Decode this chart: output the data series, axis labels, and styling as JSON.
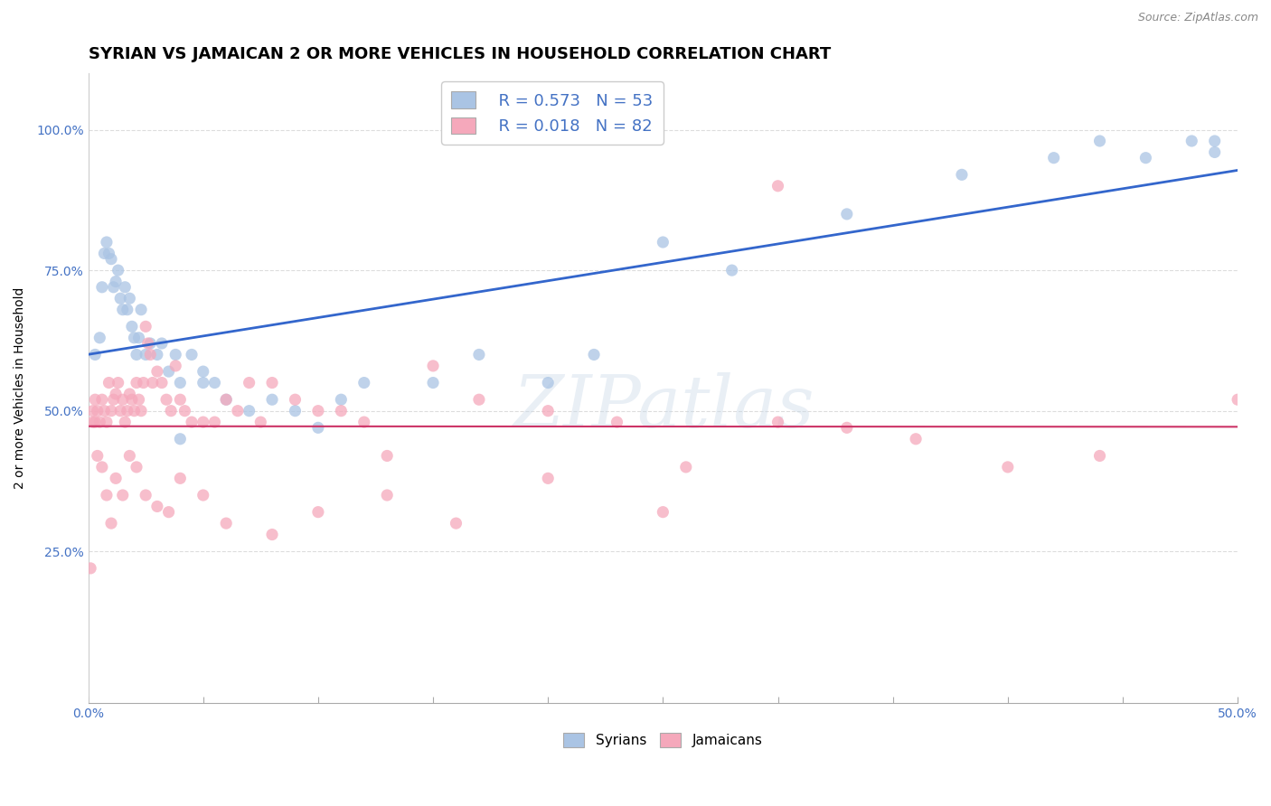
{
  "title": "SYRIAN VS JAMAICAN 2 OR MORE VEHICLES IN HOUSEHOLD CORRELATION CHART",
  "source": "Source: ZipAtlas.com",
  "ylabel": "2 or more Vehicles in Household",
  "xlim": [
    0.0,
    0.5
  ],
  "ylim": [
    -0.02,
    1.1
  ],
  "xtick_positions": [
    0.0,
    0.05,
    0.1,
    0.15,
    0.2,
    0.25,
    0.3,
    0.35,
    0.4,
    0.45,
    0.5
  ],
  "xticklabels": [
    "0.0%",
    "",
    "",
    "",
    "",
    "",
    "",
    "",
    "",
    "",
    "50.0%"
  ],
  "ytick_positions": [
    0.25,
    0.5,
    0.75,
    1.0
  ],
  "yticklabels": [
    "25.0%",
    "50.0%",
    "75.0%",
    "100.0%"
  ],
  "syrian_color": "#aac4e4",
  "jamaican_color": "#f5a8bb",
  "syrian_line_color": "#3366cc",
  "jamaican_line_color": "#cc3366",
  "legend_R_syrian": "R = 0.573",
  "legend_N_syrian": "N = 53",
  "legend_R_jamaican": "R = 0.018",
  "legend_N_jamaican": "N = 82",
  "watermark": "ZIPatlas",
  "syrian_x": [
    0.003,
    0.005,
    0.006,
    0.007,
    0.008,
    0.009,
    0.01,
    0.011,
    0.012,
    0.013,
    0.014,
    0.015,
    0.016,
    0.017,
    0.018,
    0.019,
    0.02,
    0.021,
    0.022,
    0.023,
    0.025,
    0.027,
    0.03,
    0.032,
    0.035,
    0.038,
    0.04,
    0.05,
    0.055,
    0.06,
    0.07,
    0.08,
    0.09,
    0.1,
    0.11,
    0.12,
    0.15,
    0.17,
    0.2,
    0.22,
    0.25,
    0.28,
    0.33,
    0.38,
    0.42,
    0.44,
    0.46,
    0.48,
    0.49,
    0.49,
    0.04,
    0.045,
    0.05
  ],
  "syrian_y": [
    0.6,
    0.63,
    0.72,
    0.78,
    0.8,
    0.78,
    0.77,
    0.72,
    0.73,
    0.75,
    0.7,
    0.68,
    0.72,
    0.68,
    0.7,
    0.65,
    0.63,
    0.6,
    0.63,
    0.68,
    0.6,
    0.62,
    0.6,
    0.62,
    0.57,
    0.6,
    0.55,
    0.57,
    0.55,
    0.52,
    0.5,
    0.52,
    0.5,
    0.47,
    0.52,
    0.55,
    0.55,
    0.6,
    0.55,
    0.6,
    0.8,
    0.75,
    0.85,
    0.92,
    0.95,
    0.98,
    0.95,
    0.98,
    0.96,
    0.98,
    0.45,
    0.6,
    0.55
  ],
  "jamaican_x": [
    0.001,
    0.002,
    0.003,
    0.004,
    0.005,
    0.006,
    0.007,
    0.008,
    0.009,
    0.01,
    0.011,
    0.012,
    0.013,
    0.014,
    0.015,
    0.016,
    0.017,
    0.018,
    0.019,
    0.02,
    0.021,
    0.022,
    0.023,
    0.024,
    0.025,
    0.026,
    0.027,
    0.028,
    0.03,
    0.032,
    0.034,
    0.036,
    0.038,
    0.04,
    0.042,
    0.045,
    0.05,
    0.055,
    0.06,
    0.065,
    0.07,
    0.075,
    0.08,
    0.09,
    0.1,
    0.11,
    0.12,
    0.13,
    0.15,
    0.17,
    0.2,
    0.23,
    0.26,
    0.3,
    0.33,
    0.36,
    0.4,
    0.44,
    0.5,
    0.002,
    0.003,
    0.004,
    0.006,
    0.008,
    0.01,
    0.012,
    0.015,
    0.018,
    0.021,
    0.025,
    0.03,
    0.035,
    0.04,
    0.05,
    0.06,
    0.08,
    0.1,
    0.13,
    0.16,
    0.2,
    0.25,
    0.3
  ],
  "jamaican_y": [
    0.22,
    0.48,
    0.52,
    0.5,
    0.48,
    0.52,
    0.5,
    0.48,
    0.55,
    0.5,
    0.52,
    0.53,
    0.55,
    0.5,
    0.52,
    0.48,
    0.5,
    0.53,
    0.52,
    0.5,
    0.55,
    0.52,
    0.5,
    0.55,
    0.65,
    0.62,
    0.6,
    0.55,
    0.57,
    0.55,
    0.52,
    0.5,
    0.58,
    0.52,
    0.5,
    0.48,
    0.48,
    0.48,
    0.52,
    0.5,
    0.55,
    0.48,
    0.55,
    0.52,
    0.5,
    0.5,
    0.48,
    0.42,
    0.58,
    0.52,
    0.5,
    0.48,
    0.4,
    0.48,
    0.47,
    0.45,
    0.4,
    0.42,
    0.52,
    0.5,
    0.48,
    0.42,
    0.4,
    0.35,
    0.3,
    0.38,
    0.35,
    0.42,
    0.4,
    0.35,
    0.33,
    0.32,
    0.38,
    0.35,
    0.3,
    0.28,
    0.32,
    0.35,
    0.3,
    0.38,
    0.32,
    0.9
  ],
  "background_color": "#ffffff",
  "grid_color": "#dddddd",
  "title_fontsize": 13,
  "label_fontsize": 10,
  "tick_fontsize": 10,
  "tick_color": "#4472c4",
  "legend_text_color": "#4472c4"
}
